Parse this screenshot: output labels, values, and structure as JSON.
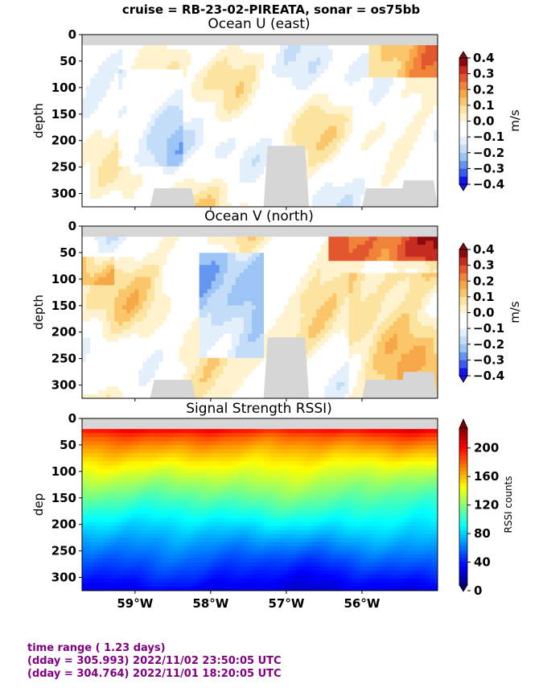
{
  "suptitle": "cruise = RB-23-02-PIREATA,  sonar = os75bb",
  "colors": {
    "land": "#d6d6d6",
    "footer": "#800080"
  },
  "footer": {
    "line1": "time range ( 1.23 days)",
    "line2": "(dday = 305.993) 2022/11/02 23:50:05 UTC",
    "line3": "(dday = 304.764) 2022/11/01 18:20:05 UTC"
  },
  "chart_data": [
    {
      "type": "heatmap",
      "title": "Ocean U (east)",
      "ylabel": "depth",
      "ylim": [
        325,
        0
      ],
      "xlim": [
        -59.7,
        -55.0
      ],
      "yticks": [
        0,
        50,
        100,
        150,
        200,
        250,
        300
      ],
      "xticks": [
        "59°W",
        "58°W",
        "57°W",
        "56°W"
      ],
      "xtick_values": [
        -59,
        -58,
        -57,
        -56
      ],
      "colorbar": {
        "label": "m/s",
        "levels": [
          -0.4,
          -0.35,
          -0.3,
          -0.25,
          -0.2,
          -0.15,
          -0.1,
          -0.05,
          0.0,
          0.05,
          0.1,
          0.15,
          0.2,
          0.25,
          0.3,
          0.35,
          0.4
        ],
        "tick_labels": [
          "0.4",
          "0.3",
          "0.2",
          "0.1",
          "0.0",
          "−0.1",
          "−0.2",
          "−0.3",
          "−0.4"
        ],
        "colors": [
          "#1414f0",
          "#3c5af0",
          "#6496f0",
          "#9cc4f5",
          "#c3ddf8",
          "#e3effb",
          "#ffffff",
          "#ffffff",
          "#fff3cf",
          "#fde3a0",
          "#fbc66a",
          "#f7a648",
          "#f0823a",
          "#e3572e",
          "#c72a1f",
          "#8a0a10"
        ]
      }
    },
    {
      "type": "heatmap",
      "title": "Ocean V (north)",
      "ylabel": "depth",
      "ylim": [
        325,
        0
      ],
      "xlim": [
        -59.7,
        -55.0
      ],
      "yticks": [
        0,
        50,
        100,
        150,
        200,
        250,
        300
      ],
      "colorbar": {
        "label": "m/s",
        "tick_labels": [
          "0.4",
          "0.3",
          "0.2",
          "0.1",
          "0.0",
          "−0.1",
          "−0.2",
          "−0.3",
          "−0.4"
        ]
      }
    },
    {
      "type": "heatmap",
      "title": "Signal Strength RSSI)",
      "ylabel": "dep",
      "ylim": [
        325,
        0
      ],
      "xlim": [
        -59.7,
        -55.0
      ],
      "yticks": [
        0,
        50,
        100,
        150,
        200,
        250,
        300
      ],
      "xticks": [
        "59°W",
        "58°W",
        "57°W",
        "56°W"
      ],
      "colorbar": {
        "label": "RSSI counts",
        "range": [
          0,
          220
        ],
        "tick_labels": [
          "200",
          "160",
          "120",
          "80",
          "40",
          "0"
        ],
        "tick_values": [
          200,
          160,
          120,
          80,
          40,
          0
        ]
      }
    }
  ]
}
